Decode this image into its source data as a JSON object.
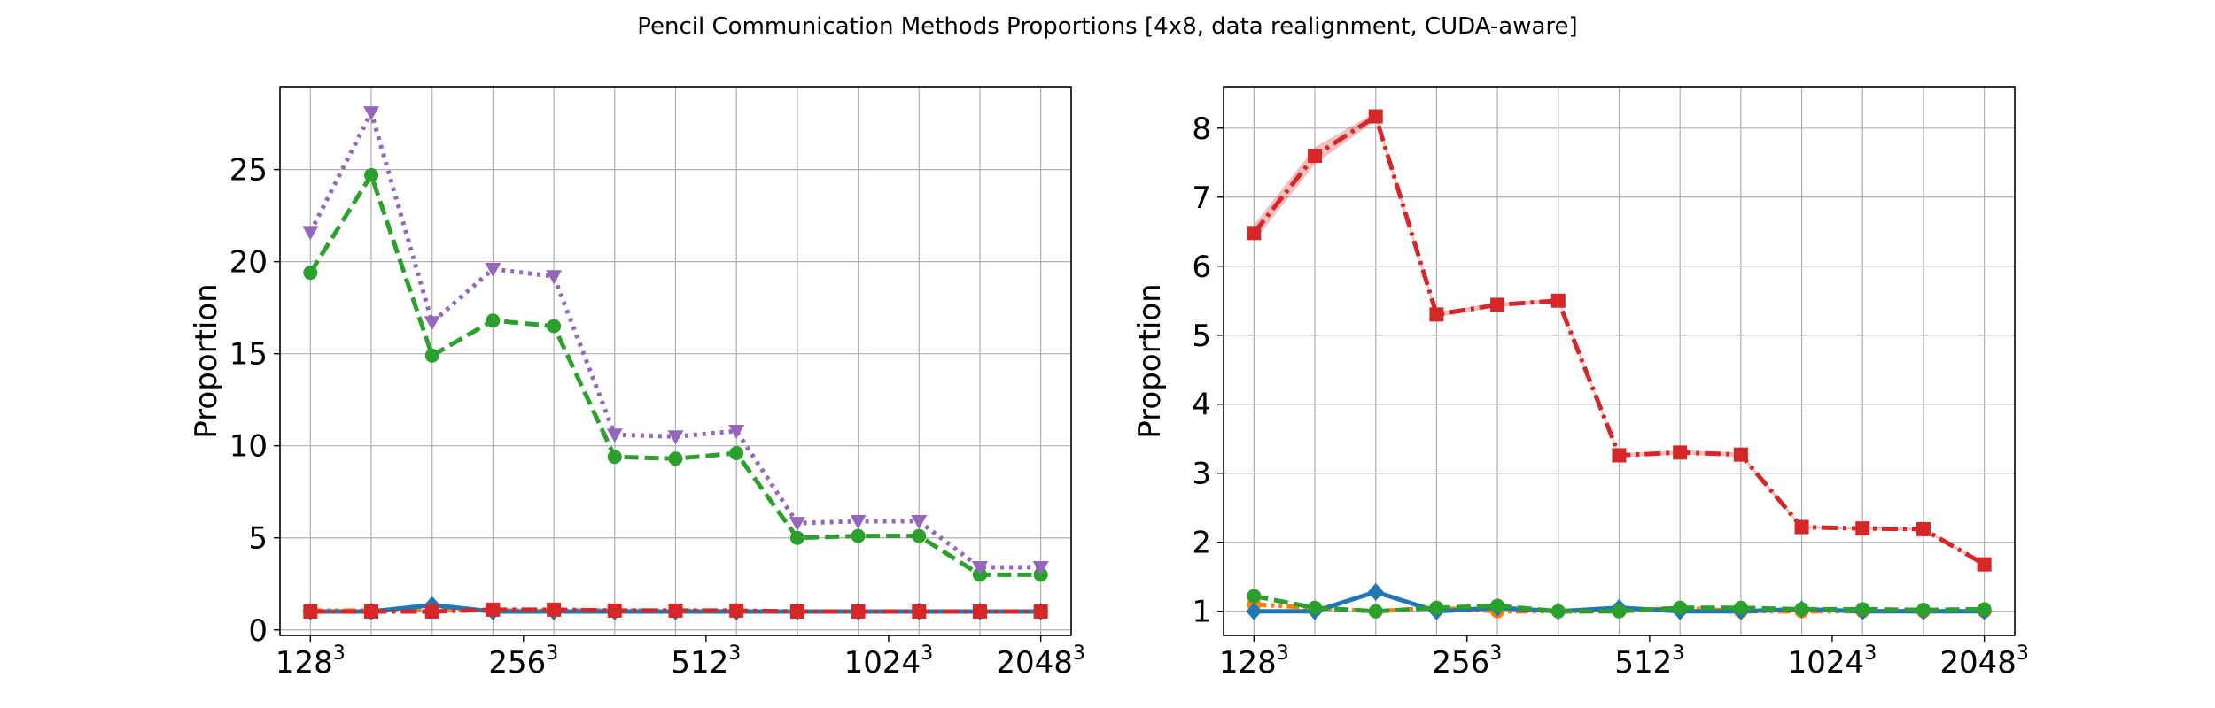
{
  "figure": {
    "title": "Pencil Communication Methods Proportions [4x8, data realignment, CUDA-aware]"
  },
  "chart_data": [
    {
      "type": "line",
      "ylabel": "Proportion",
      "ylim": [
        -0.3,
        29.5
      ],
      "xlim": [
        -0.5,
        12.5
      ],
      "grid": true,
      "yticks": [
        0,
        5,
        10,
        15,
        20,
        25
      ],
      "x": [
        0,
        1,
        2,
        3,
        4,
        5,
        6,
        7,
        8,
        9,
        10,
        11,
        12
      ],
      "xtick_labels": [
        {
          "x": 0,
          "base": "128",
          "exp": "3"
        },
        {
          "x": 3.5,
          "base": "256",
          "exp": "3"
        },
        {
          "x": 6.5,
          "base": "512",
          "exp": "3"
        },
        {
          "x": 9.5,
          "base": "1024",
          "exp": "3"
        },
        {
          "x": 12,
          "base": "2048",
          "exp": "3"
        }
      ],
      "series": [
        {
          "color": "#ff7f0e",
          "dash": "dash-dot-dot",
          "marker": "circle",
          "values": [
            1.05,
            1.05,
            1.1,
            1.05,
            1.05,
            1.05,
            1.05,
            1.0,
            1.0,
            1.0,
            1.0,
            1.0,
            1.0
          ]
        },
        {
          "color": "#1f77b4",
          "dash": "solid",
          "marker": "diamond",
          "values": [
            1.0,
            1.0,
            1.35,
            1.0,
            1.0,
            1.0,
            1.0,
            1.0,
            1.0,
            1.0,
            1.0,
            1.0,
            1.0
          ]
        },
        {
          "color": "#2ca02c",
          "dash": "dashed",
          "marker": "circle",
          "values": [
            19.4,
            24.7,
            14.9,
            16.8,
            16.5,
            9.4,
            9.3,
            9.6,
            5.0,
            5.1,
            5.1,
            3.0,
            3.0
          ]
        },
        {
          "color": "#9467bd",
          "dash": "dotted",
          "marker": "triangle-down",
          "values": [
            21.6,
            28.1,
            16.7,
            19.6,
            19.2,
            10.6,
            10.5,
            10.8,
            5.8,
            5.9,
            5.9,
            3.4,
            3.4
          ]
        },
        {
          "color": "#d62728",
          "dash": "dash-dot",
          "marker": "square",
          "values": [
            1.0,
            1.0,
            1.0,
            1.1,
            1.1,
            1.05,
            1.05,
            1.05,
            1.0,
            1.0,
            1.0,
            1.0,
            1.0
          ]
        }
      ]
    },
    {
      "type": "line",
      "ylabel": "Proportion",
      "ylim": [
        0.65,
        8.6
      ],
      "xlim": [
        -0.5,
        12.5
      ],
      "grid": true,
      "yticks": [
        1,
        2,
        3,
        4,
        5,
        6,
        7,
        8
      ],
      "x": [
        0,
        1,
        2,
        3,
        4,
        5,
        6,
        7,
        8,
        9,
        10,
        11,
        12
      ],
      "xtick_labels": [
        {
          "x": 0,
          "base": "128",
          "exp": "3"
        },
        {
          "x": 3.5,
          "base": "256",
          "exp": "3"
        },
        {
          "x": 6.5,
          "base": "512",
          "exp": "3"
        },
        {
          "x": 9.5,
          "base": "1024",
          "exp": "3"
        },
        {
          "x": 12,
          "base": "2048",
          "exp": "3"
        }
      ],
      "series": [
        {
          "color": "#ff7f0e",
          "dash": "dash-dot-dot",
          "marker": "circle",
          "values": [
            1.1,
            1.05,
            1.0,
            1.05,
            1.0,
            1.0,
            1.0,
            1.05,
            1.0,
            1.0,
            1.0,
            1.0,
            1.0
          ]
        },
        {
          "color": "#1f77b4",
          "dash": "solid",
          "marker": "diamond",
          "values": [
            1.0,
            1.0,
            1.28,
            1.0,
            1.05,
            1.0,
            1.05,
            1.0,
            1.0,
            1.03,
            1.0,
            1.0,
            1.0
          ]
        },
        {
          "color": "#2ca02c",
          "dash": "dashed",
          "marker": "circle",
          "values": [
            1.22,
            1.05,
            1.0,
            1.05,
            1.08,
            1.0,
            1.0,
            1.05,
            1.05,
            1.03,
            1.03,
            1.02,
            1.03
          ]
        },
        {
          "color": "#d62728",
          "dash": "dash-dot",
          "marker": "square",
          "values": [
            6.48,
            7.6,
            8.17,
            5.3,
            5.44,
            5.5,
            3.26,
            3.3,
            3.27,
            2.22,
            2.2,
            2.19,
            1.68
          ],
          "band": [
            0.12,
            0.12,
            0.06,
            0.04,
            0.03,
            0.03,
            0.03,
            0.03,
            0.03,
            0.02,
            0.02,
            0.02,
            0.02
          ]
        }
      ]
    }
  ]
}
